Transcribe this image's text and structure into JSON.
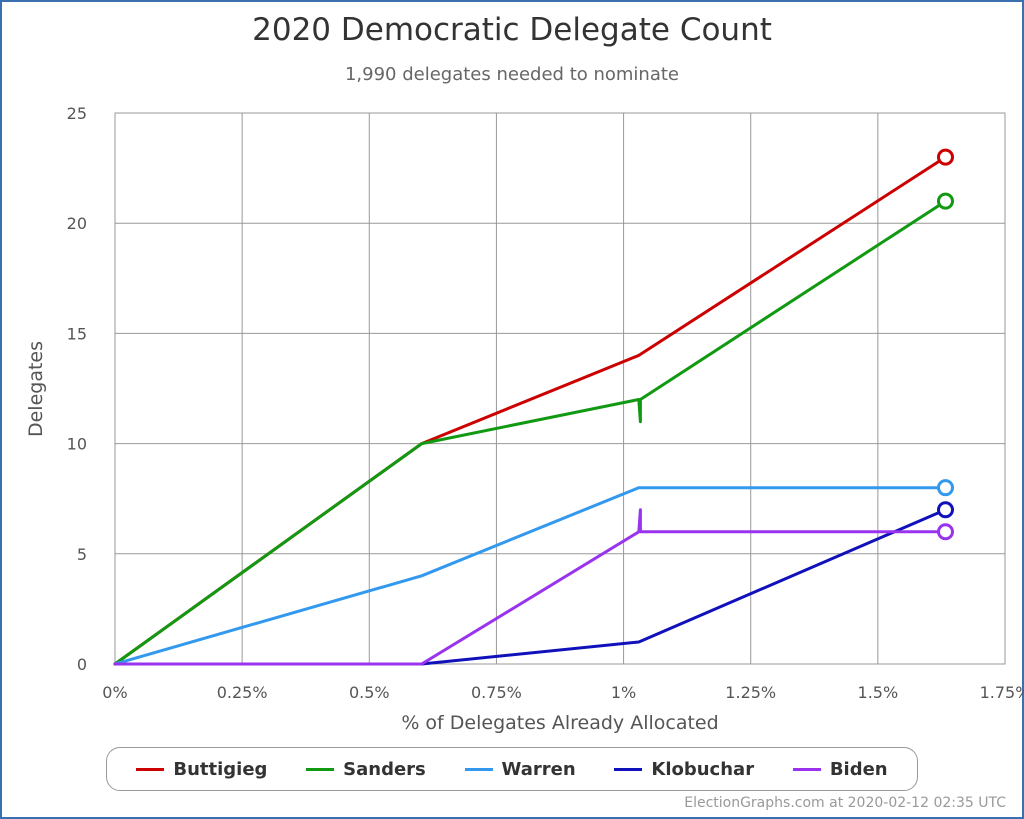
{
  "chart_data": {
    "type": "line",
    "title": "2020 Democratic Delegate Count",
    "subtitle": "1,990 delegates needed to nominate",
    "xlabel": "% of Delegates Already Allocated",
    "ylabel": "Delegates",
    "xlim": [
      0,
      1.75
    ],
    "ylim": [
      0,
      25
    ],
    "x_ticks": [
      {
        "value": 0,
        "label": "0%"
      },
      {
        "value": 0.25,
        "label": "0.25%"
      },
      {
        "value": 0.5,
        "label": "0.5%"
      },
      {
        "value": 0.75,
        "label": "0.75%"
      },
      {
        "value": 1.0,
        "label": "1%"
      },
      {
        "value": 1.25,
        "label": "1.25%"
      },
      {
        "value": 1.5,
        "label": "1.5%"
      },
      {
        "value": 1.75,
        "label": "1.75%"
      }
    ],
    "y_ticks": [
      {
        "value": 0,
        "label": "0"
      },
      {
        "value": 5,
        "label": "5"
      },
      {
        "value": 10,
        "label": "10"
      },
      {
        "value": 15,
        "label": "15"
      },
      {
        "value": 20,
        "label": "20"
      },
      {
        "value": 25,
        "label": "25"
      }
    ],
    "grid": true,
    "legend_position": "bottom",
    "series": [
      {
        "name": "Buttigieg",
        "color": "#cc0000",
        "points": [
          [
            0,
            0
          ],
          [
            0.603,
            10
          ],
          [
            1.03,
            14
          ],
          [
            1.633,
            23
          ]
        ]
      },
      {
        "name": "Sanders",
        "color": "#119911",
        "points": [
          [
            0,
            0
          ],
          [
            0.603,
            10
          ],
          [
            1.03,
            12
          ],
          [
            1.033,
            11
          ],
          [
            1.033,
            12
          ],
          [
            1.633,
            21
          ]
        ]
      },
      {
        "name": "Warren",
        "color": "#3399ee",
        "points": [
          [
            0,
            0
          ],
          [
            0.603,
            4
          ],
          [
            1.03,
            8
          ],
          [
            1.633,
            8
          ]
        ]
      },
      {
        "name": "Klobuchar",
        "color": "#1111bb",
        "points": [
          [
            0,
            0
          ],
          [
            0.603,
            0
          ],
          [
            1.03,
            1
          ],
          [
            1.633,
            7
          ]
        ]
      },
      {
        "name": "Biden",
        "color": "#9933ee",
        "points": [
          [
            0,
            0
          ],
          [
            0.603,
            0
          ],
          [
            1.03,
            6
          ],
          [
            1.033,
            7
          ],
          [
            1.033,
            6
          ],
          [
            1.633,
            6
          ]
        ]
      }
    ]
  },
  "footer": {
    "credit": "ElectionGraphs.com at 2020-02-12 02:35 UTC"
  }
}
